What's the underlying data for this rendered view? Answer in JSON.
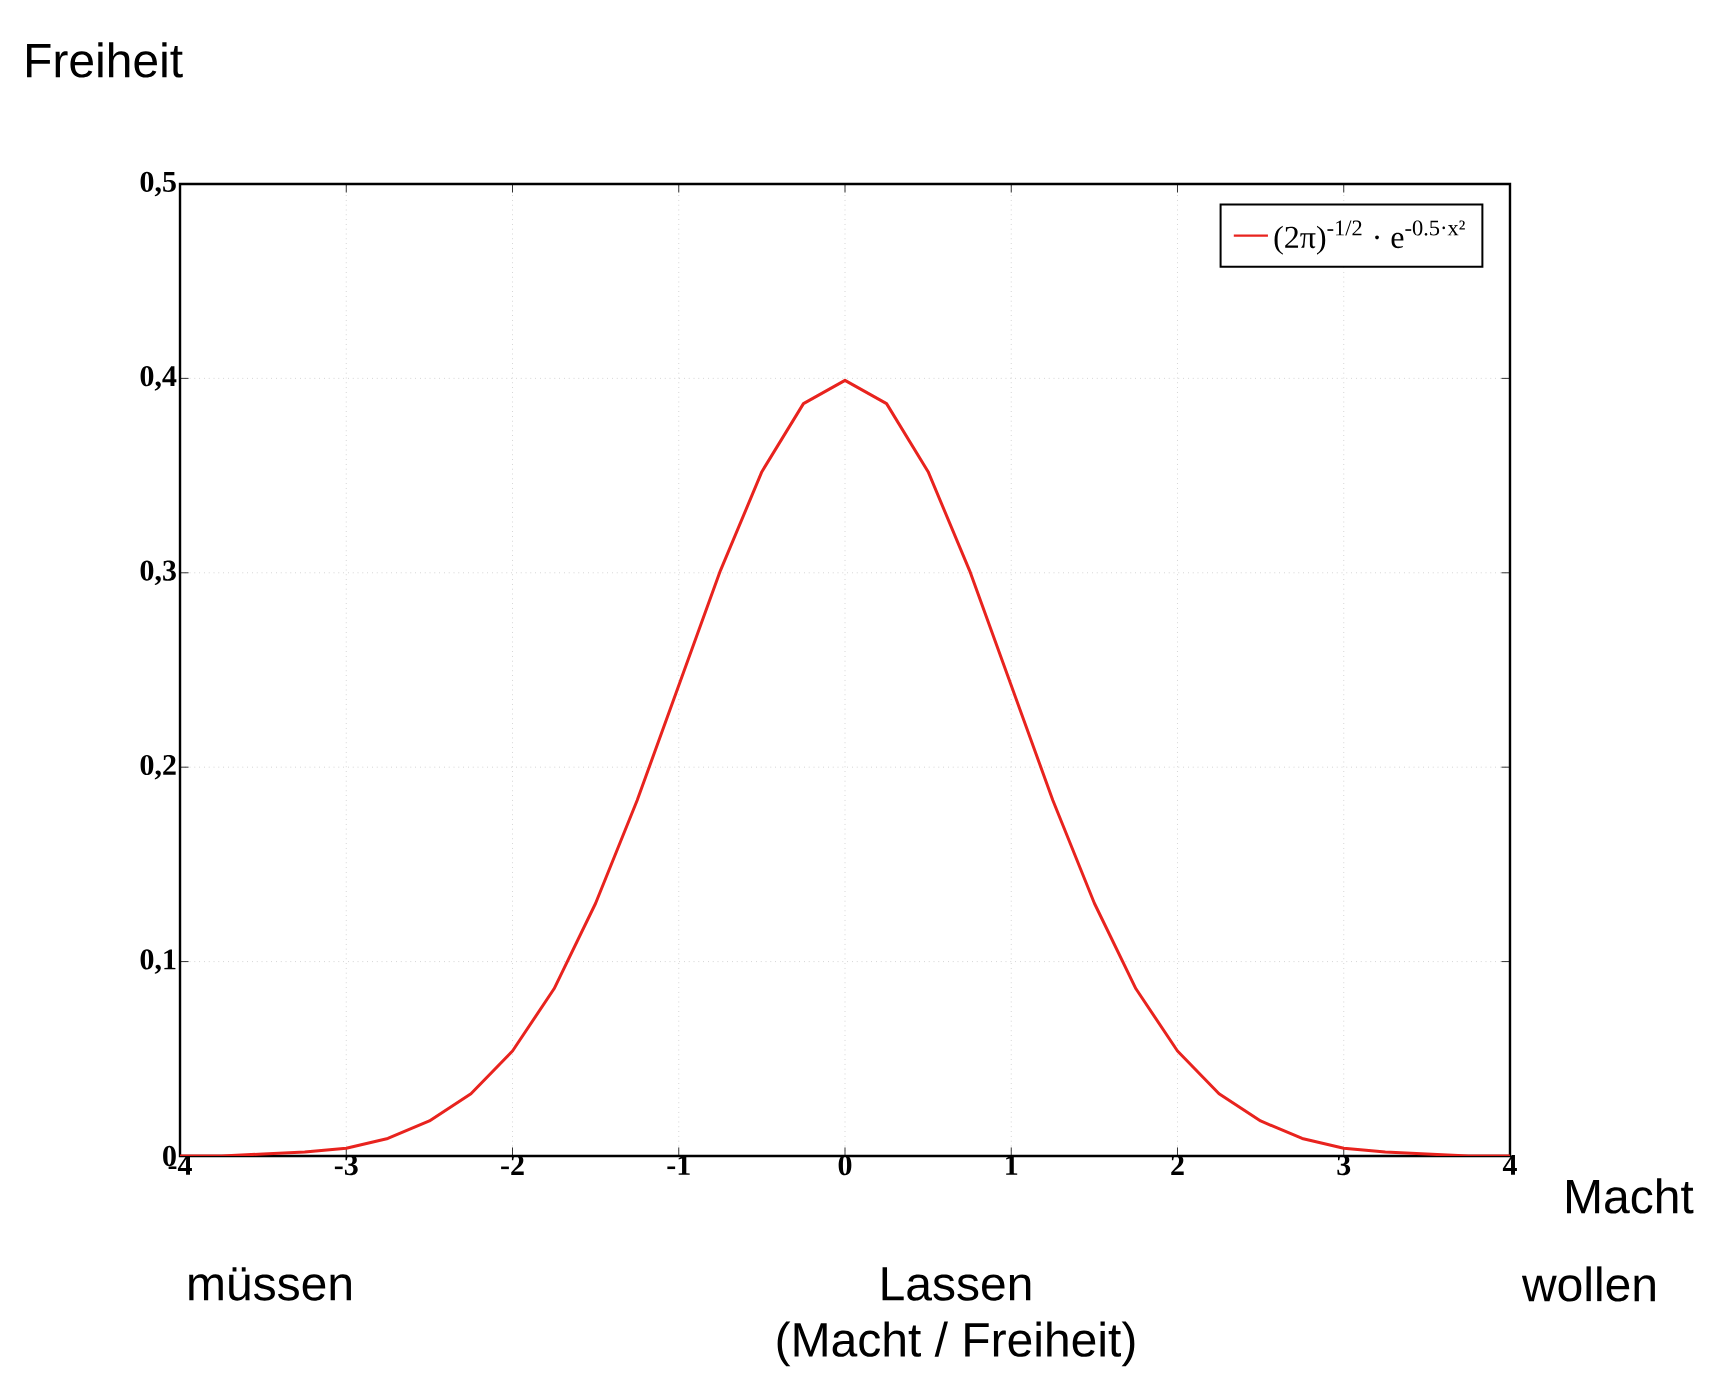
{
  "chart_data": {
    "type": "line",
    "xlabel": "Macht",
    "ylabel": "Freiheit",
    "x": [
      -4,
      -3.75,
      -3.5,
      -3.25,
      -3,
      -2.75,
      -2.5,
      -2.25,
      -2,
      -1.75,
      -1.5,
      -1.25,
      -1,
      -0.75,
      -0.5,
      -0.25,
      0,
      0.25,
      0.5,
      0.75,
      1,
      1.25,
      1.5,
      1.75,
      2,
      2.25,
      2.5,
      2.75,
      3,
      3.25,
      3.5,
      3.75,
      4
    ],
    "series": [
      {
        "name": "(2π)$^{-1/2}$ · e$^{-0.5·x²}$",
        "color": "#e8231e",
        "values": [
          0.0,
          0.0,
          0.001,
          0.002,
          0.004,
          0.009,
          0.018,
          0.032,
          0.054,
          0.086,
          0.13,
          0.183,
          0.242,
          0.301,
          0.352,
          0.387,
          0.399,
          0.387,
          0.352,
          0.301,
          0.242,
          0.183,
          0.13,
          0.086,
          0.054,
          0.032,
          0.018,
          0.009,
          0.004,
          0.002,
          0.001,
          0.0,
          0.0
        ]
      }
    ],
    "xlim": [
      -4,
      4
    ],
    "ylim": [
      0,
      0.5
    ],
    "xticks": [
      -4,
      -3,
      -2,
      -1,
      0,
      1,
      2,
      3,
      4
    ],
    "yticks": [
      {
        "value": 0,
        "label": "0"
      },
      {
        "value": 0.1,
        "label": "0,1"
      },
      {
        "value": 0.2,
        "label": "0,2"
      },
      {
        "value": 0.3,
        "label": "0,3"
      },
      {
        "value": 0.4,
        "label": "0,4"
      },
      {
        "value": 0.5,
        "label": "0,5"
      }
    ],
    "grid": true,
    "legend": "top right",
    "marker": "none",
    "line_style": "solid",
    "annotations": [
      "müssen",
      "Lassen",
      "(Macht / Freiheit)",
      "wollen"
    ]
  }
}
